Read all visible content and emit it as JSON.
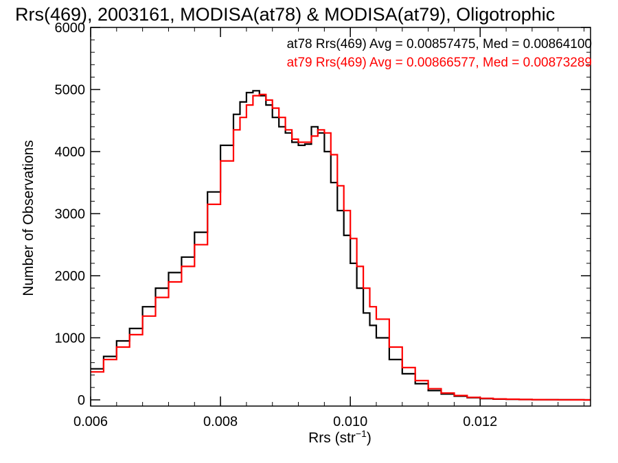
{
  "chart_data": {
    "type": "line",
    "title": "Rrs(469), 2003161, MODISA(at78) & MODISA(at79), Oligotrophic",
    "xlabel": {
      "base": "Rrs (str",
      "sup": "−1",
      "tail": ")"
    },
    "ylabel": "Number of Observations",
    "xlim": [
      0.006,
      0.0137
    ],
    "ylim": [
      -100,
      6000
    ],
    "xticks": [
      0.006,
      0.008,
      0.01,
      0.012
    ],
    "xtick_labels": [
      "0.006",
      "0.008",
      "0.010",
      "0.012"
    ],
    "yticks": [
      0,
      1000,
      2000,
      3000,
      4000,
      5000,
      6000
    ],
    "ytick_labels": [
      "0",
      "1000",
      "2000",
      "3000",
      "4000",
      "5000",
      "6000"
    ],
    "step": true,
    "legend_position": "top-right",
    "legend": [
      "at78 Rrs(469) Avg = 0.00857475, Med = 0.00864100",
      "at79 Rrs(469) Avg = 0.00866577, Med = 0.00873289"
    ],
    "series": [
      {
        "name": "at78",
        "color": "#000000",
        "x": [
          0.006,
          0.0062,
          0.0064,
          0.0066,
          0.0068,
          0.007,
          0.0072,
          0.0074,
          0.0076,
          0.0078,
          0.008,
          0.0082,
          0.0083,
          0.0084,
          0.0085,
          0.0086,
          0.0087,
          0.0088,
          0.0089,
          0.009,
          0.0091,
          0.0092,
          0.0093,
          0.0094,
          0.0095,
          0.0096,
          0.0097,
          0.0098,
          0.0099,
          0.01,
          0.0101,
          0.0102,
          0.0103,
          0.0104,
          0.0106,
          0.0108,
          0.011,
          0.0112,
          0.0114,
          0.0116,
          0.0118,
          0.012,
          0.0122,
          0.0124,
          0.0126,
          0.0128,
          0.013,
          0.0132,
          0.0134,
          0.0136
        ],
        "y": [
          500,
          700,
          950,
          1150,
          1500,
          1800,
          2050,
          2300,
          2700,
          3350,
          4100,
          4600,
          4800,
          4950,
          4980,
          4900,
          4750,
          4550,
          4400,
          4300,
          4150,
          4100,
          4120,
          4400,
          4300,
          4000,
          3500,
          3050,
          2650,
          2200,
          1800,
          1400,
          1200,
          1000,
          650,
          420,
          260,
          150,
          95,
          60,
          35,
          20,
          12,
          8,
          5,
          4,
          3,
          2,
          1,
          0
        ]
      },
      {
        "name": "at79",
        "color": "#ff0000",
        "x": [
          0.006,
          0.0062,
          0.0064,
          0.0066,
          0.0068,
          0.007,
          0.0072,
          0.0074,
          0.0076,
          0.0078,
          0.008,
          0.0082,
          0.0083,
          0.0084,
          0.0085,
          0.0086,
          0.0087,
          0.0088,
          0.0089,
          0.009,
          0.0091,
          0.0092,
          0.0093,
          0.0094,
          0.0095,
          0.0096,
          0.0097,
          0.0098,
          0.0099,
          0.01,
          0.0101,
          0.0102,
          0.0103,
          0.0104,
          0.0106,
          0.0108,
          0.011,
          0.0112,
          0.0114,
          0.0116,
          0.0118,
          0.012,
          0.0122,
          0.0124,
          0.0126,
          0.0128,
          0.013,
          0.0132,
          0.0134,
          0.0136
        ],
        "y": [
          450,
          650,
          850,
          1050,
          1350,
          1650,
          1900,
          2150,
          2500,
          3150,
          3850,
          4350,
          4550,
          4750,
          4900,
          4920,
          4830,
          4700,
          4550,
          4350,
          4200,
          4150,
          4150,
          4250,
          4350,
          4300,
          3950,
          3450,
          3050,
          2600,
          2150,
          1800,
          1500,
          1300,
          850,
          520,
          310,
          180,
          110,
          70,
          40,
          25,
          15,
          10,
          6,
          4,
          3,
          2,
          1,
          0
        ]
      }
    ]
  }
}
